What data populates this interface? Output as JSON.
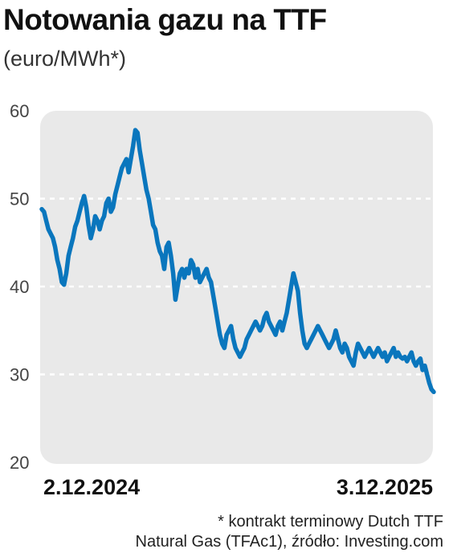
{
  "title": "Notowania gazu na TTF",
  "subtitle": "(euro/MWh*)",
  "colors": {
    "line": "#0a76bd",
    "plot_bg": "#e9e9e9",
    "grid": "#ffffff"
  },
  "footnote": {
    "line1": "* kontrakt terminowy Dutch TTF",
    "line2": "Natural Gas (TFAc1), źródło: Investing.com"
  },
  "chart_data": {
    "type": "line",
    "title": "Notowania gazu na TTF",
    "ylabel": "(euro/MWh*)",
    "xlabel": "",
    "ylim": [
      20,
      60
    ],
    "yticks": [
      60,
      50,
      40,
      30,
      20
    ],
    "grid": true,
    "x_tick_labels": [
      "2.12.2024",
      "3.12.2025"
    ],
    "series": [
      {
        "values": [
          48.8,
          48.5,
          47.5,
          46.5,
          46.0,
          45.5,
          44.5,
          43.0,
          42.0,
          40.5,
          40.2,
          41.5,
          43.5,
          44.5,
          45.5,
          46.8,
          47.5,
          48.5,
          49.5,
          50.3,
          49.0,
          47.0,
          45.5,
          46.5,
          48.0,
          47.5,
          46.5,
          47.5,
          48.0,
          49.5,
          50.0,
          48.5,
          49.0,
          50.5,
          51.5,
          52.5,
          53.5,
          54.0,
          54.5,
          53.0,
          54.5,
          56.0,
          57.8,
          57.5,
          55.5,
          54.0,
          52.5,
          51.0,
          50.0,
          48.5,
          47.0,
          46.5,
          45.0,
          44.0,
          43.5,
          42.0,
          44.5,
          45.0,
          43.5,
          41.5,
          38.5,
          40.0,
          41.5,
          42.0,
          41.0,
          42.0,
          41.5,
          43.0,
          42.5,
          41.0,
          42.0,
          40.5,
          41.0,
          41.5,
          42.0,
          41.0,
          40.5,
          39.0,
          37.5,
          36.0,
          34.5,
          33.5,
          33.0,
          34.5,
          35.0,
          35.5,
          34.0,
          33.0,
          32.5,
          32.0,
          32.5,
          33.0,
          34.0,
          34.5,
          35.0,
          35.5,
          36.0,
          35.5,
          35.0,
          35.5,
          36.5,
          37.0,
          36.0,
          35.5,
          35.0,
          34.5,
          35.5,
          36.0,
          35.0,
          36.0,
          37.0,
          38.5,
          40.0,
          41.5,
          40.5,
          39.5,
          37.0,
          35.0,
          33.5,
          33.0,
          33.5,
          34.0,
          34.5,
          35.0,
          35.5,
          35.0,
          34.5,
          34.0,
          33.5,
          33.0,
          33.5,
          34.0,
          35.0,
          34.0,
          33.0,
          32.5,
          33.5,
          33.0,
          32.0,
          31.5,
          31.0,
          32.5,
          33.5,
          33.0,
          32.5,
          32.0,
          32.5,
          33.0,
          32.5,
          32.0,
          32.5,
          33.0,
          32.5,
          32.0,
          32.5,
          31.5,
          32.0,
          32.5,
          33.0,
          32.0,
          32.5,
          32.0,
          31.8,
          32.0,
          31.5,
          32.0,
          32.5,
          31.5,
          31.0,
          31.5,
          31.8,
          30.5,
          31.0,
          30.0,
          29.0,
          28.3,
          28.0
        ]
      }
    ]
  }
}
